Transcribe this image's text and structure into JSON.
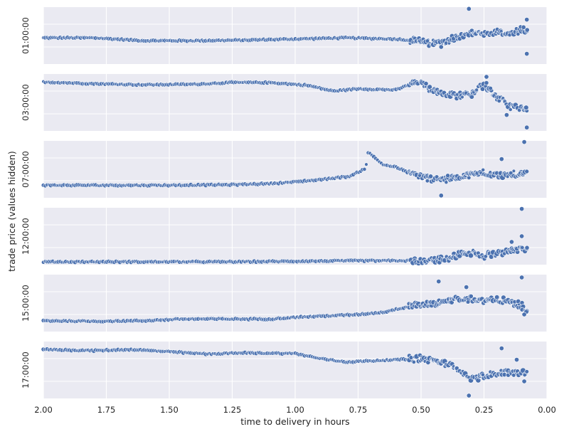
{
  "chart_data": {
    "type": "scatter",
    "title": "",
    "xlabel": "time to delivery in hours",
    "ylabel": "trade price (values hidden)",
    "xlim": [
      2.0,
      0.0
    ],
    "x_reversed": true,
    "x_ticks": [
      "2.00",
      "1.75",
      "1.50",
      "1.25",
      "1.00",
      "0.75",
      "0.50",
      "0.25",
      "0.00"
    ],
    "y_ticks_hidden": true,
    "grid": true,
    "style": "seaborn-darkgrid",
    "colors": {
      "points": "#4C72B0",
      "panel": "#EAEAF2",
      "grid": "#FFFFFF"
    },
    "panels": [
      {
        "label": "01:00:00",
        "series": [
          {
            "x": 2.0,
            "y": 0.46
          },
          {
            "x": 1.8,
            "y": 0.46
          },
          {
            "x": 1.6,
            "y": 0.41
          },
          {
            "x": 1.4,
            "y": 0.41
          },
          {
            "x": 1.2,
            "y": 0.42
          },
          {
            "x": 1.0,
            "y": 0.44
          },
          {
            "x": 0.8,
            "y": 0.46
          },
          {
            "x": 0.6,
            "y": 0.44
          },
          {
            "x": 0.5,
            "y": 0.4
          },
          {
            "x": 0.45,
            "y": 0.36
          },
          {
            "x": 0.38,
            "y": 0.44
          },
          {
            "x": 0.32,
            "y": 0.52
          },
          {
            "x": 0.28,
            "y": 0.56
          },
          {
            "x": 0.25,
            "y": 0.5
          },
          {
            "x": 0.2,
            "y": 0.55
          },
          {
            "x": 0.15,
            "y": 0.52
          },
          {
            "x": 0.1,
            "y": 0.6
          },
          {
            "x": 0.08,
            "y": 0.55
          }
        ],
        "outliers": [
          {
            "x": 0.31,
            "y": 0.97
          },
          {
            "x": 0.08,
            "y": 0.78
          },
          {
            "x": 0.08,
            "y": 0.18
          },
          {
            "x": 0.42,
            "y": 0.3
          }
        ]
      },
      {
        "label": "03:00:00",
        "series": [
          {
            "x": 2.0,
            "y": 0.86
          },
          {
            "x": 1.8,
            "y": 0.83
          },
          {
            "x": 1.6,
            "y": 0.81
          },
          {
            "x": 1.4,
            "y": 0.82
          },
          {
            "x": 1.25,
            "y": 0.85
          },
          {
            "x": 1.1,
            "y": 0.85
          },
          {
            "x": 0.95,
            "y": 0.8
          },
          {
            "x": 0.85,
            "y": 0.7
          },
          {
            "x": 0.75,
            "y": 0.74
          },
          {
            "x": 0.6,
            "y": 0.72
          },
          {
            "x": 0.52,
            "y": 0.86
          },
          {
            "x": 0.45,
            "y": 0.72
          },
          {
            "x": 0.4,
            "y": 0.66
          },
          {
            "x": 0.35,
            "y": 0.62
          },
          {
            "x": 0.3,
            "y": 0.66
          },
          {
            "x": 0.25,
            "y": 0.82
          },
          {
            "x": 0.2,
            "y": 0.6
          },
          {
            "x": 0.15,
            "y": 0.44
          },
          {
            "x": 0.1,
            "y": 0.4
          },
          {
            "x": 0.08,
            "y": 0.36
          }
        ],
        "outliers": [
          {
            "x": 0.08,
            "y": 0.06
          },
          {
            "x": 0.24,
            "y": 0.95
          },
          {
            "x": 0.16,
            "y": 0.28
          }
        ]
      },
      {
        "label": "07:00:00",
        "series": [
          {
            "x": 2.0,
            "y": 0.22
          },
          {
            "x": 1.75,
            "y": 0.22
          },
          {
            "x": 1.5,
            "y": 0.22
          },
          {
            "x": 1.25,
            "y": 0.23
          },
          {
            "x": 1.1,
            "y": 0.25
          },
          {
            "x": 1.0,
            "y": 0.28
          },
          {
            "x": 0.9,
            "y": 0.32
          },
          {
            "x": 0.78,
            "y": 0.38
          },
          {
            "x": 0.72,
            "y": 0.52
          },
          {
            "x": 0.71,
            "y": 0.8
          },
          {
            "x": 0.65,
            "y": 0.58
          },
          {
            "x": 0.6,
            "y": 0.54
          },
          {
            "x": 0.55,
            "y": 0.44
          },
          {
            "x": 0.5,
            "y": 0.38
          },
          {
            "x": 0.45,
            "y": 0.32
          },
          {
            "x": 0.4,
            "y": 0.32
          },
          {
            "x": 0.35,
            "y": 0.38
          },
          {
            "x": 0.3,
            "y": 0.4
          },
          {
            "x": 0.25,
            "y": 0.44
          },
          {
            "x": 0.2,
            "y": 0.4
          },
          {
            "x": 0.15,
            "y": 0.4
          },
          {
            "x": 0.1,
            "y": 0.42
          },
          {
            "x": 0.08,
            "y": 0.44
          }
        ],
        "outliers": [
          {
            "x": 0.09,
            "y": 0.98
          },
          {
            "x": 0.42,
            "y": 0.04
          },
          {
            "x": 0.18,
            "y": 0.68
          }
        ]
      },
      {
        "label": "12:00:00",
        "series": [
          {
            "x": 2.0,
            "y": 0.05
          },
          {
            "x": 1.75,
            "y": 0.05
          },
          {
            "x": 1.5,
            "y": 0.05
          },
          {
            "x": 1.25,
            "y": 0.05
          },
          {
            "x": 1.0,
            "y": 0.06
          },
          {
            "x": 0.75,
            "y": 0.07
          },
          {
            "x": 0.5,
            "y": 0.07
          },
          {
            "x": 0.4,
            "y": 0.1
          },
          {
            "x": 0.35,
            "y": 0.18
          },
          {
            "x": 0.3,
            "y": 0.2
          },
          {
            "x": 0.25,
            "y": 0.16
          },
          {
            "x": 0.2,
            "y": 0.2
          },
          {
            "x": 0.15,
            "y": 0.26
          },
          {
            "x": 0.1,
            "y": 0.26
          },
          {
            "x": 0.08,
            "y": 0.28
          }
        ],
        "outliers": [
          {
            "x": 0.1,
            "y": 0.98
          },
          {
            "x": 0.1,
            "y": 0.5
          },
          {
            "x": 0.14,
            "y": 0.4
          }
        ]
      },
      {
        "label": "15:00:00",
        "series": [
          {
            "x": 2.0,
            "y": 0.19
          },
          {
            "x": 1.8,
            "y": 0.18
          },
          {
            "x": 1.6,
            "y": 0.19
          },
          {
            "x": 1.45,
            "y": 0.22
          },
          {
            "x": 1.3,
            "y": 0.22
          },
          {
            "x": 1.1,
            "y": 0.22
          },
          {
            "x": 1.0,
            "y": 0.25
          },
          {
            "x": 0.9,
            "y": 0.27
          },
          {
            "x": 0.75,
            "y": 0.3
          },
          {
            "x": 0.65,
            "y": 0.34
          },
          {
            "x": 0.55,
            "y": 0.44
          },
          {
            "x": 0.45,
            "y": 0.48
          },
          {
            "x": 0.38,
            "y": 0.56
          },
          {
            "x": 0.3,
            "y": 0.58
          },
          {
            "x": 0.25,
            "y": 0.54
          },
          {
            "x": 0.2,
            "y": 0.56
          },
          {
            "x": 0.15,
            "y": 0.52
          },
          {
            "x": 0.1,
            "y": 0.44
          },
          {
            "x": 0.08,
            "y": 0.38
          }
        ],
        "outliers": [
          {
            "x": 0.1,
            "y": 0.95
          },
          {
            "x": 0.43,
            "y": 0.88
          },
          {
            "x": 0.32,
            "y": 0.78
          },
          {
            "x": 0.09,
            "y": 0.3
          }
        ]
      },
      {
        "label": "17:00:00",
        "series": [
          {
            "x": 2.0,
            "y": 0.86
          },
          {
            "x": 1.8,
            "y": 0.84
          },
          {
            "x": 1.65,
            "y": 0.86
          },
          {
            "x": 1.5,
            "y": 0.82
          },
          {
            "x": 1.35,
            "y": 0.78
          },
          {
            "x": 1.2,
            "y": 0.8
          },
          {
            "x": 1.0,
            "y": 0.79
          },
          {
            "x": 0.9,
            "y": 0.7
          },
          {
            "x": 0.8,
            "y": 0.64
          },
          {
            "x": 0.7,
            "y": 0.66
          },
          {
            "x": 0.6,
            "y": 0.68
          },
          {
            "x": 0.5,
            "y": 0.7
          },
          {
            "x": 0.4,
            "y": 0.62
          },
          {
            "x": 0.35,
            "y": 0.5
          },
          {
            "x": 0.3,
            "y": 0.34
          },
          {
            "x": 0.25,
            "y": 0.38
          },
          {
            "x": 0.2,
            "y": 0.44
          },
          {
            "x": 0.15,
            "y": 0.46
          },
          {
            "x": 0.1,
            "y": 0.44
          },
          {
            "x": 0.08,
            "y": 0.46
          }
        ],
        "outliers": [
          {
            "x": 0.31,
            "y": 0.05
          },
          {
            "x": 0.18,
            "y": 0.88
          },
          {
            "x": 0.09,
            "y": 0.3
          },
          {
            "x": 0.12,
            "y": 0.68
          }
        ]
      }
    ]
  }
}
